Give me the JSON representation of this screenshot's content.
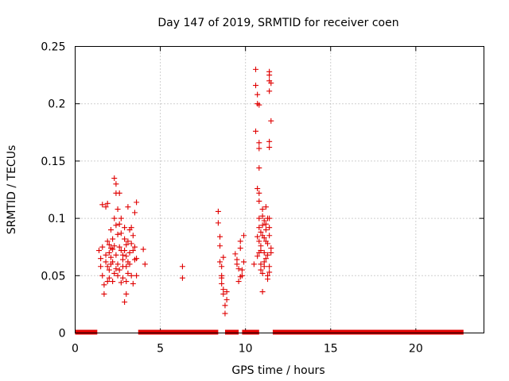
{
  "chart_data": {
    "type": "scatter",
    "title": "Day 147 of 2019, SRMTID for receiver coen",
    "xlabel": "GPS time / hours",
    "ylabel": "SRMTID / TECUs",
    "xlim": [
      0,
      24
    ],
    "ylim": [
      0,
      0.25
    ],
    "x_ticks": [
      0,
      5,
      10,
      15,
      20
    ],
    "x_tick_labels": [
      "0",
      "5",
      "10",
      "15",
      "20"
    ],
    "y_ticks": [
      0,
      0.05,
      0.1,
      0.15,
      0.2,
      0.25
    ],
    "y_tick_labels": [
      "0",
      "0.05",
      "0.1",
      "0.15",
      "0.2",
      "0.25"
    ],
    "grid": true,
    "marker": "plus",
    "series": [
      {
        "name": "SRMTID",
        "color": "#e00000",
        "points": [
          [
            1.4,
            0.072
          ],
          [
            1.5,
            0.065
          ],
          [
            1.5,
            0.058
          ],
          [
            1.6,
            0.112
          ],
          [
            1.6,
            0.075
          ],
          [
            1.6,
            0.05
          ],
          [
            1.7,
            0.042
          ],
          [
            1.7,
            0.034
          ],
          [
            1.8,
            0.11
          ],
          [
            1.8,
            0.068
          ],
          [
            1.8,
            0.062
          ],
          [
            1.9,
            0.113
          ],
          [
            1.9,
            0.08
          ],
          [
            1.9,
            0.045
          ],
          [
            2.0,
            0.07
          ],
          [
            2.0,
            0.055
          ],
          [
            2.0,
            0.048
          ],
          [
            2.1,
            0.09
          ],
          [
            2.1,
            0.066
          ],
          [
            2.1,
            0.06
          ],
          [
            2.2,
            0.082
          ],
          [
            2.2,
            0.073
          ],
          [
            2.2,
            0.045
          ],
          [
            2.3,
            0.135
          ],
          [
            2.3,
            0.1
          ],
          [
            2.3,
            0.076
          ],
          [
            2.4,
            0.13
          ],
          [
            2.4,
            0.122
          ],
          [
            2.4,
            0.094
          ],
          [
            2.4,
            0.068
          ],
          [
            2.5,
            0.108
          ],
          [
            2.5,
            0.086
          ],
          [
            2.5,
            0.06
          ],
          [
            2.5,
            0.05
          ],
          [
            2.6,
            0.122
          ],
          [
            2.6,
            0.075
          ],
          [
            2.6,
            0.055
          ],
          [
            2.7,
            0.1
          ],
          [
            2.7,
            0.087
          ],
          [
            2.7,
            0.072
          ],
          [
            2.8,
            0.068
          ],
          [
            2.8,
            0.064
          ],
          [
            2.8,
            0.048
          ],
          [
            2.9,
            0.092
          ],
          [
            2.9,
            0.082
          ],
          [
            2.9,
            0.027
          ],
          [
            3.0,
            0.077
          ],
          [
            3.0,
            0.058
          ],
          [
            3.0,
            0.045
          ],
          [
            3.0,
            0.034
          ],
          [
            3.1,
            0.11
          ],
          [
            3.1,
            0.08
          ],
          [
            3.1,
            0.052
          ],
          [
            3.2,
            0.07
          ],
          [
            3.2,
            0.06
          ],
          [
            3.3,
            0.092
          ],
          [
            3.3,
            0.078
          ],
          [
            3.3,
            0.05
          ],
          [
            3.4,
            0.085
          ],
          [
            3.4,
            0.072
          ],
          [
            3.4,
            0.043
          ],
          [
            3.5,
            0.105
          ],
          [
            3.5,
            0.075
          ],
          [
            3.6,
            0.114
          ],
          [
            3.6,
            0.065
          ],
          [
            3.6,
            0.05
          ],
          [
            1.9,
            0.058
          ],
          [
            2.0,
            0.077
          ],
          [
            2.2,
            0.062
          ],
          [
            2.3,
            0.052
          ],
          [
            2.6,
            0.095
          ],
          [
            2.7,
            0.044
          ],
          [
            2.8,
            0.058
          ],
          [
            3.0,
            0.067
          ],
          [
            3.2,
            0.09
          ],
          [
            3.5,
            0.064
          ],
          [
            2.1,
            0.074
          ],
          [
            2.9,
            0.072
          ],
          [
            3.1,
            0.062
          ],
          [
            2.4,
            0.056
          ],
          [
            4.0,
            0.073
          ],
          [
            4.1,
            0.06
          ],
          [
            6.3,
            0.058
          ],
          [
            6.3,
            0.048
          ],
          [
            8.4,
            0.106
          ],
          [
            8.4,
            0.096
          ],
          [
            8.5,
            0.084
          ],
          [
            8.5,
            0.076
          ],
          [
            8.5,
            0.062
          ],
          [
            8.6,
            0.05
          ],
          [
            8.6,
            0.048
          ],
          [
            8.6,
            0.043
          ],
          [
            8.7,
            0.038
          ],
          [
            8.7,
            0.034
          ],
          [
            8.8,
            0.017
          ],
          [
            8.8,
            0.024
          ],
          [
            8.9,
            0.036
          ],
          [
            8.6,
            0.058
          ],
          [
            8.7,
            0.066
          ],
          [
            8.9,
            0.029
          ],
          [
            9.4,
            0.069
          ],
          [
            9.5,
            0.064
          ],
          [
            9.5,
            0.06
          ],
          [
            9.6,
            0.045
          ],
          [
            9.7,
            0.08
          ],
          [
            9.7,
            0.074
          ],
          [
            9.8,
            0.055
          ],
          [
            9.8,
            0.05
          ],
          [
            9.9,
            0.085
          ],
          [
            9.9,
            0.062
          ],
          [
            9.6,
            0.056
          ],
          [
            9.7,
            0.049
          ],
          [
            10.5,
            0.06
          ],
          [
            10.6,
            0.23
          ],
          [
            10.6,
            0.216
          ],
          [
            10.6,
            0.176
          ],
          [
            10.7,
            0.208
          ],
          [
            10.7,
            0.2
          ],
          [
            10.7,
            0.126
          ],
          [
            10.7,
            0.084
          ],
          [
            10.8,
            0.199
          ],
          [
            10.8,
            0.166
          ],
          [
            10.8,
            0.161
          ],
          [
            10.8,
            0.144
          ],
          [
            10.8,
            0.122
          ],
          [
            10.8,
            0.115
          ],
          [
            10.8,
            0.1
          ],
          [
            10.8,
            0.092
          ],
          [
            10.8,
            0.08
          ],
          [
            10.8,
            0.07
          ],
          [
            10.9,
            0.076
          ],
          [
            10.9,
            0.088
          ],
          [
            10.9,
            0.06
          ],
          [
            10.9,
            0.055
          ],
          [
            11.0,
            0.108
          ],
          [
            11.0,
            0.102
          ],
          [
            11.0,
            0.085
          ],
          [
            11.0,
            0.036
          ],
          [
            11.1,
            0.098
          ],
          [
            11.1,
            0.07
          ],
          [
            11.1,
            0.062
          ],
          [
            11.1,
            0.058
          ],
          [
            11.2,
            0.095
          ],
          [
            11.2,
            0.09
          ],
          [
            11.2,
            0.08
          ],
          [
            11.2,
            0.065
          ],
          [
            11.3,
            0.078
          ],
          [
            11.3,
            0.068
          ],
          [
            11.3,
            0.05
          ],
          [
            11.3,
            0.047
          ],
          [
            11.4,
            0.228
          ],
          [
            11.4,
            0.225
          ],
          [
            11.4,
            0.22
          ],
          [
            11.4,
            0.211
          ],
          [
            11.4,
            0.167
          ],
          [
            11.4,
            0.162
          ],
          [
            11.5,
            0.218
          ],
          [
            11.5,
            0.185
          ],
          [
            11.4,
            0.1
          ],
          [
            11.4,
            0.092
          ],
          [
            11.4,
            0.085
          ],
          [
            11.5,
            0.074
          ],
          [
            11.5,
            0.07
          ],
          [
            11.4,
            0.058
          ],
          [
            11.4,
            0.053
          ],
          [
            11.0,
            0.094
          ],
          [
            11.2,
            0.11
          ],
          [
            10.9,
            0.072
          ],
          [
            11.1,
            0.083
          ],
          [
            11.3,
            0.1
          ],
          [
            10.7,
            0.067
          ],
          [
            11.0,
            0.052
          ]
        ]
      }
    ],
    "zero_segments": [
      [
        0,
        1.3
      ],
      [
        3.7,
        8.4
      ],
      [
        8.8,
        9.6
      ],
      [
        9.8,
        10.8
      ],
      [
        11.6,
        22.8
      ]
    ]
  }
}
